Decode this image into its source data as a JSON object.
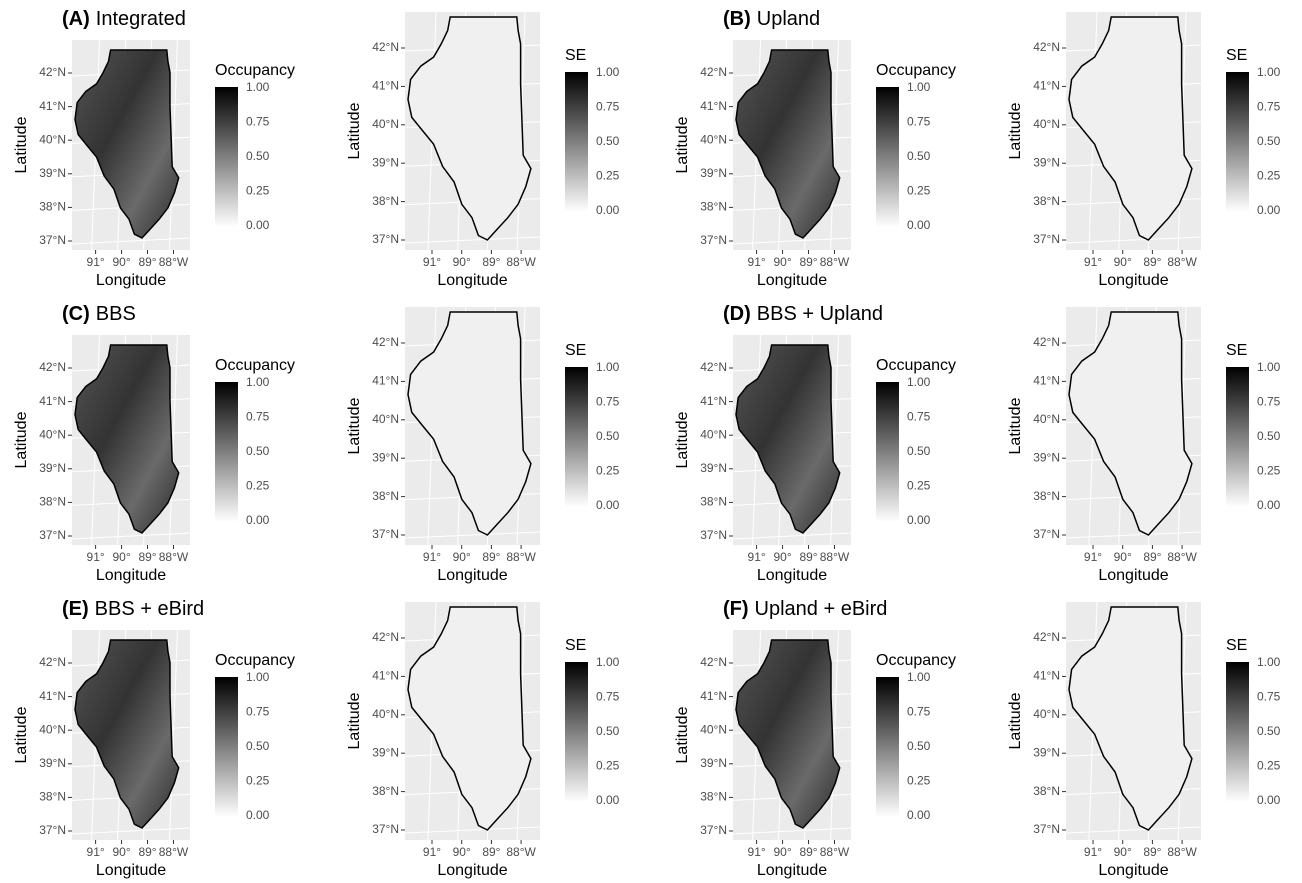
{
  "panels": [
    {
      "label": "(A)",
      "title": "Integrated"
    },
    {
      "label": "(B)",
      "title": "Upland"
    },
    {
      "label": "(C)",
      "title": "BBS"
    },
    {
      "label": "(D)",
      "title": "BBS + Upland"
    },
    {
      "label": "(E)",
      "title": "BBS + eBird"
    },
    {
      "label": "(F)",
      "title": "Upland + eBird"
    }
  ],
  "axes": {
    "x_title": "Longitude",
    "y_title": "Latitude",
    "lat_ticks": [
      "42°N",
      "41°N",
      "40°N",
      "39°N",
      "38°N",
      "37°N"
    ],
    "lon_ticks": [
      "91°",
      "90°",
      "89°",
      "88°W"
    ]
  },
  "legends": {
    "occupancy": "Occupancy",
    "se": "SE",
    "ticks": [
      "1.00",
      "0.75",
      "0.50",
      "0.25",
      "0.00"
    ]
  }
}
